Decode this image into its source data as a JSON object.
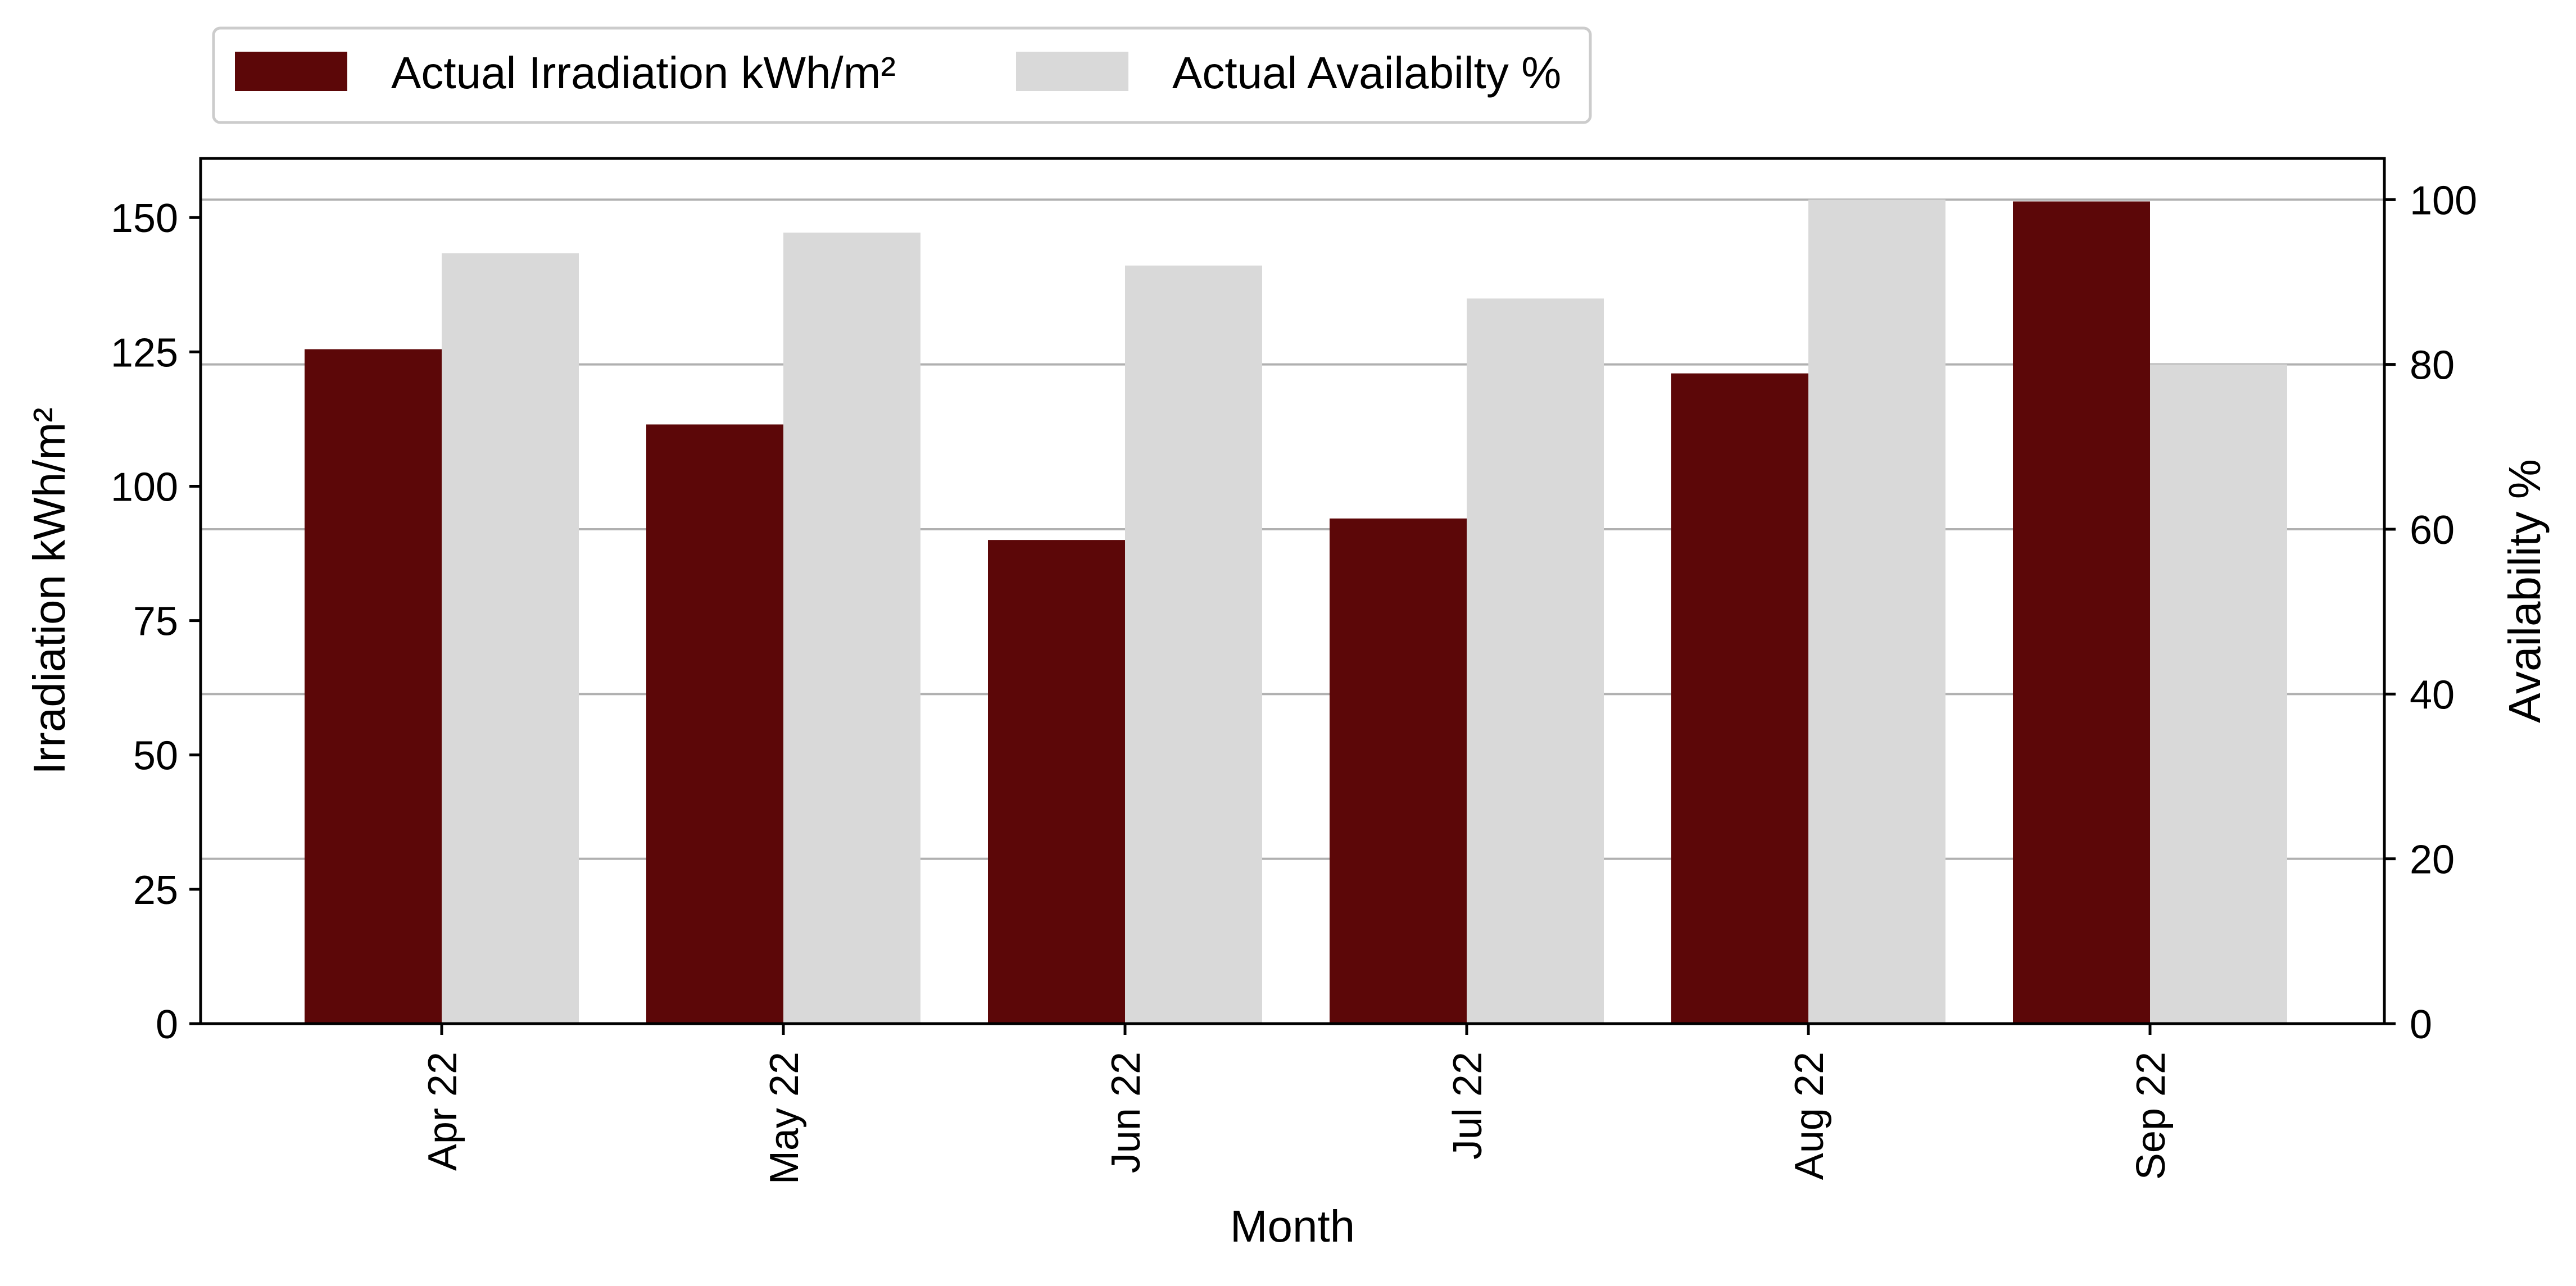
{
  "chart_data": {
    "type": "bar",
    "categories": [
      "Apr 22",
      "May 22",
      "Jun 22",
      "Jul 22",
      "Aug 22",
      "Sep 22"
    ],
    "series": [
      {
        "name": "Actual Irradiation kWh/m²",
        "axis": "left",
        "color": "#5c0708",
        "values": [
          125.5,
          111.5,
          90,
          94,
          121,
          153
        ]
      },
      {
        "name": "Actual Availabilty %",
        "axis": "right",
        "color": "#d9d9d9",
        "values": [
          93.5,
          96,
          92,
          88,
          100,
          80
        ]
      }
    ],
    "xlabel": "Month",
    "ylabel": "Irradiation kWh/m²",
    "ylabel_right": "Availability %",
    "ylim": [
      0,
      161
    ],
    "ylim_right": [
      0,
      105
    ],
    "yticks": [
      "0",
      "25",
      "50",
      "75",
      "100",
      "125",
      "150"
    ],
    "yticks_right": [
      "0",
      "20",
      "40",
      "60",
      "80",
      "100"
    ],
    "grid": "horizontal lines at right-axis ticks",
    "legend_position": "top-left, above plot"
  }
}
